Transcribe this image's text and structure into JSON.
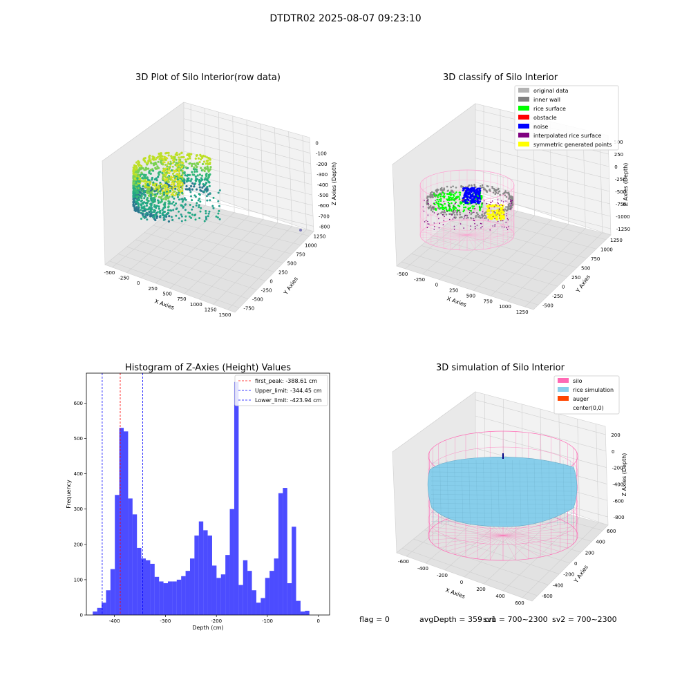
{
  "figure": {
    "suptitle": "DTDTR02 2025-08-07 09:23:10",
    "status": {
      "flag": "flag = 0",
      "avg_depth": "avgDepth = 359 cm",
      "sv1": "sv1 = 700~2300",
      "sv2": "sv2 = 700~2300"
    }
  },
  "panel1": {
    "title": "3D Plot of Silo Interior(row data)",
    "xlabel": "X Axies",
    "ylabel": "Y Axies",
    "zlabel": "Z Axies (Depth)",
    "xticks": [
      "-500",
      "-250",
      "0",
      "250",
      "500",
      "750",
      "1000",
      "1250",
      "1500"
    ],
    "yticks": [
      "-750",
      "-500",
      "-250",
      "0",
      "250",
      "500",
      "750",
      "1000",
      "1250"
    ],
    "zticks": [
      "0",
      "-100",
      "-200",
      "-300",
      "-400",
      "-500",
      "-600",
      "-700",
      "-800"
    ]
  },
  "panel2": {
    "title": "3D classify of Silo Interior",
    "xlabel": "X Axies",
    "ylabel": "Y Axies",
    "zlabel": "Z Axies (Depth)",
    "xticks": [
      "-500",
      "-250",
      "0",
      "250",
      "500",
      "750",
      "1000",
      "1250"
    ],
    "yticks": [
      "-500",
      "-250",
      "0",
      "250",
      "500",
      "750",
      "1000",
      "1250"
    ],
    "zticks": [
      "500",
      "250",
      "0",
      "-250",
      "-500",
      "-750",
      "-1000",
      "-1250"
    ],
    "legend": [
      {
        "label": "original data",
        "color": "#b3b3b3"
      },
      {
        "label": "inner wall",
        "color": "#808080"
      },
      {
        "label": "rice surface",
        "color": "#00ff00"
      },
      {
        "label": "obstacle",
        "color": "#ff0000"
      },
      {
        "label": "noise",
        "color": "#0000ff"
      },
      {
        "label": "interpolated rice surface",
        "color": "#800080"
      },
      {
        "label": "symmetric generated points",
        "color": "#ffff00"
      }
    ]
  },
  "panel4": {
    "title": "3D simulation of Silo Interior",
    "xlabel": "X Axies",
    "ylabel": "Y Axies",
    "zlabel": "Z Axies (Depth)",
    "xticks": [
      "-600",
      "-400",
      "-200",
      "0",
      "200",
      "400",
      "600"
    ],
    "yticks": [
      "-600",
      "-400",
      "-200",
      "0",
      "200",
      "400",
      "600"
    ],
    "zticks": [
      "200",
      "0",
      "-200",
      "-400",
      "-600",
      "-800"
    ],
    "legend": [
      {
        "label": "silo",
        "color": "#ff69b4"
      },
      {
        "label": "rice simulation",
        "color": "#87ceeb"
      },
      {
        "label": "auger",
        "color": "#ff4500"
      },
      {
        "label": "center(0,0)",
        "color": ""
      }
    ]
  },
  "chart_data": [
    {
      "type": "bar",
      "title": "Histogram of Z-Axies (Height) Values",
      "xlabel": "Depth (cm)",
      "ylabel": "Frequency",
      "xlim": [
        -455,
        22
      ],
      "ylim": [
        0,
        685
      ],
      "xticks": [
        -400,
        -300,
        -200,
        -100,
        0
      ],
      "yticks": [
        0,
        100,
        200,
        300,
        400,
        500,
        600
      ],
      "bin_edges_start": -442.5,
      "bin_width": 8.67,
      "values": [
        10,
        20,
        35,
        70,
        130,
        340,
        530,
        520,
        330,
        285,
        190,
        160,
        155,
        145,
        108,
        95,
        90,
        95,
        95,
        100,
        110,
        125,
        160,
        225,
        265,
        240,
        225,
        140,
        105,
        115,
        170,
        300,
        660,
        85,
        155,
        125,
        70,
        35,
        48,
        105,
        125,
        160,
        345,
        360,
        90,
        250,
        40,
        10,
        12
      ],
      "bar_color": "#0000ff",
      "series": [
        {
          "name": "first_peak: -388.61 cm",
          "value": -388.61,
          "color": "#ff0000",
          "style": "dashed"
        },
        {
          "name": "Upper_limit: -344.45 cm",
          "value": -344.45,
          "color": "#0000ff",
          "style": "dashed"
        },
        {
          "name": "Lower_limit: -423.94 cm",
          "value": -423.94,
          "color": "#0000ff",
          "style": "dashed"
        }
      ],
      "legend_position": "upper right"
    }
  ]
}
